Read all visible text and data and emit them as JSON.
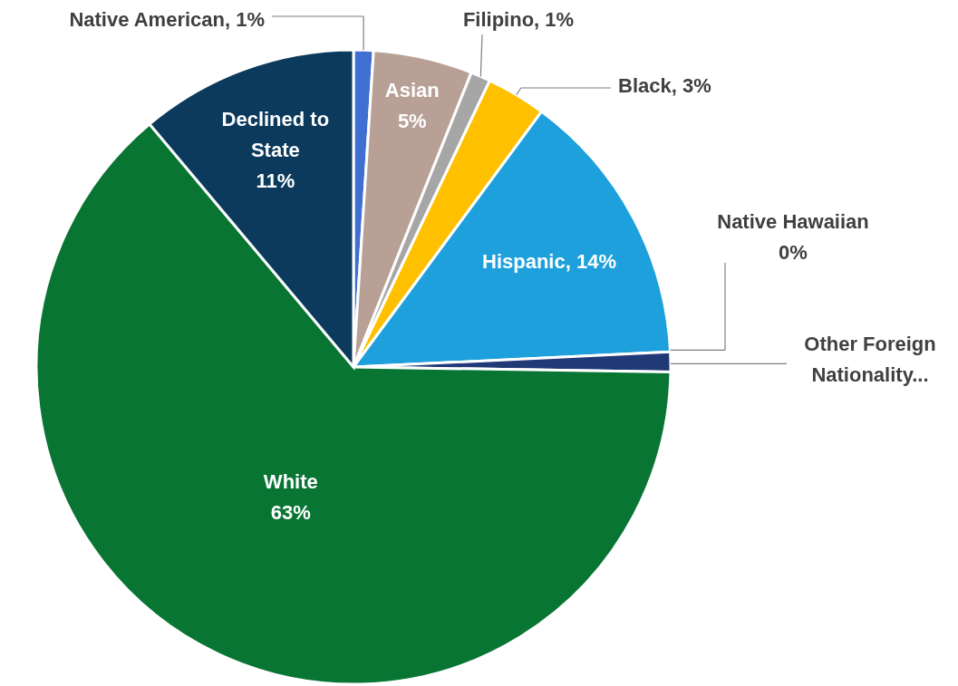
{
  "chart_data": {
    "type": "pie",
    "categories": [
      "Native American",
      "Asian",
      "Filipino",
      "Black",
      "Hispanic",
      "Native Hawaiian",
      "Other Foreign Nationality...",
      "White",
      "Declined to State"
    ],
    "values": [
      1,
      5,
      1,
      3,
      14,
      0,
      1,
      63,
      11
    ],
    "value_labels": [
      "1%",
      "5%",
      "1%",
      "3%",
      "14%",
      "0%",
      null,
      "63%",
      "11%"
    ],
    "colors": [
      "#3f6fd0",
      "#b8a096",
      "#a6a6a6",
      "#ffc000",
      "#1ea0dc",
      "#7f7f7f",
      "#203a78",
      "#087533",
      "#0b3a5c"
    ]
  }
}
